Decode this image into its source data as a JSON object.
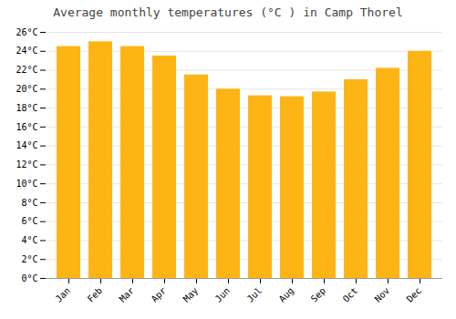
{
  "chart_data": {
    "type": "bar",
    "title": "Average monthly temperatures (°C ) in Camp Thorel",
    "categories": [
      "Jan",
      "Feb",
      "Mar",
      "Apr",
      "May",
      "Jun",
      "Jul",
      "Aug",
      "Sep",
      "Oct",
      "Nov",
      "Dec"
    ],
    "values": [
      24.5,
      25.0,
      24.5,
      23.5,
      21.5,
      20.0,
      19.3,
      19.2,
      19.7,
      21.0,
      22.2,
      24.0
    ],
    "color": "#FDB515",
    "ylim": [
      0,
      26
    ],
    "yticks": [
      {
        "value": 0,
        "label": "0°C"
      },
      {
        "value": 2,
        "label": "2°C"
      },
      {
        "value": 4,
        "label": "4°C"
      },
      {
        "value": 6,
        "label": "6°C"
      },
      {
        "value": 8,
        "label": "8°C"
      },
      {
        "value": 10,
        "label": "10°C"
      },
      {
        "value": 12,
        "label": "12°C"
      },
      {
        "value": 14,
        "label": "14°C"
      },
      {
        "value": 16,
        "label": "16°C"
      },
      {
        "value": 18,
        "label": "18°C"
      },
      {
        "value": 20,
        "label": "20°C"
      },
      {
        "value": 22,
        "label": "22°C"
      },
      {
        "value": 24,
        "label": "24°C"
      },
      {
        "value": 26,
        "label": "26°C"
      }
    ],
    "grid": true
  }
}
